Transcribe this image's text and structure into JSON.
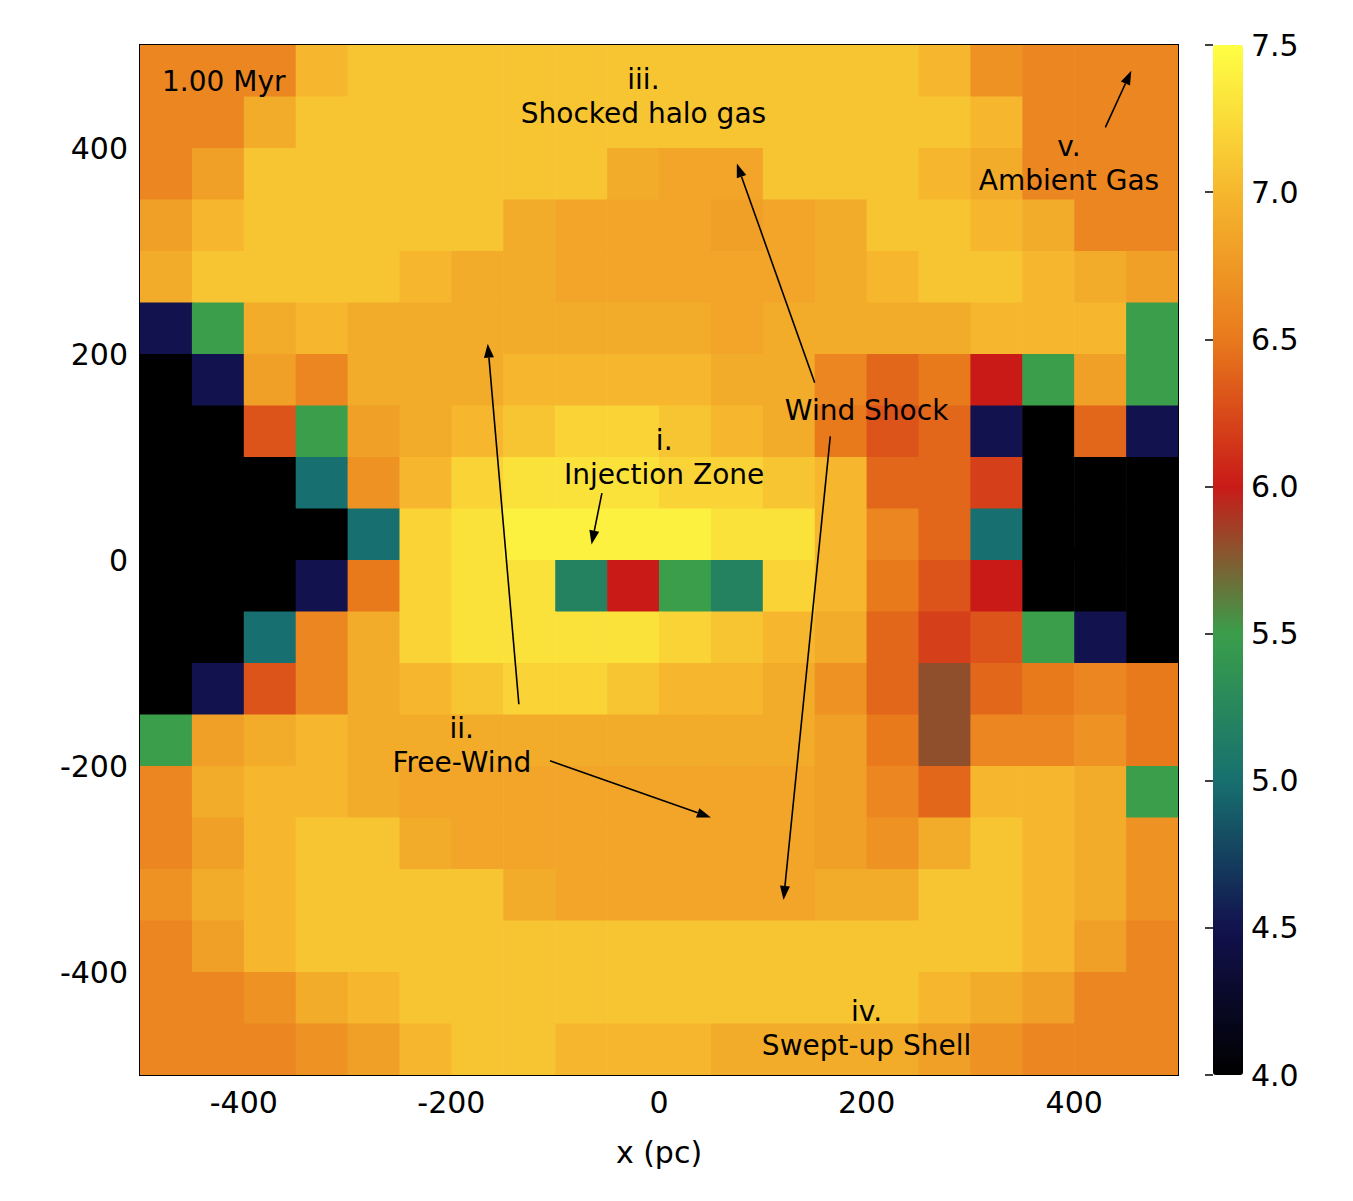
{
  "chart_data": {
    "type": "heatmap",
    "title": "1.00 Myr",
    "xlabel": "x (pc)",
    "x": [
      -475,
      -425,
      -375,
      -325,
      -275,
      -225,
      -175,
      -125,
      -75,
      -25,
      25,
      75,
      125,
      175,
      225,
      275,
      325,
      375,
      425,
      475
    ],
    "y": [
      475,
      425,
      375,
      325,
      275,
      225,
      175,
      125,
      75,
      25,
      -25,
      -75,
      -125,
      -175,
      -225,
      -275,
      -325,
      -375,
      -425,
      -475
    ],
    "values": [
      [
        6.6,
        6.6,
        6.6,
        7.0,
        7.1,
        7.1,
        7.1,
        7.1,
        7.1,
        7.1,
        7.1,
        7.1,
        7.1,
        7.1,
        7.1,
        7.0,
        6.7,
        6.6,
        6.6,
        6.6
      ],
      [
        6.6,
        6.6,
        6.9,
        7.1,
        7.1,
        7.1,
        7.1,
        7.1,
        7.1,
        7.1,
        7.1,
        7.1,
        7.1,
        7.1,
        7.1,
        7.1,
        7.0,
        6.6,
        6.6,
        6.6
      ],
      [
        6.6,
        6.8,
        7.1,
        7.1,
        7.1,
        7.1,
        7.1,
        7.1,
        7.1,
        6.9,
        6.85,
        6.85,
        7.1,
        7.1,
        7.1,
        7.0,
        6.9,
        6.6,
        6.6,
        6.6
      ],
      [
        6.8,
        7.0,
        7.1,
        7.1,
        7.1,
        7.1,
        7.1,
        6.9,
        6.85,
        6.85,
        6.85,
        6.8,
        6.85,
        6.9,
        7.1,
        7.1,
        7.0,
        6.9,
        6.6,
        6.6
      ],
      [
        6.9,
        7.1,
        7.1,
        7.1,
        7.1,
        7.0,
        6.9,
        6.9,
        6.85,
        6.85,
        6.85,
        6.85,
        6.85,
        6.9,
        7.0,
        7.1,
        7.1,
        7.0,
        6.9,
        6.8
      ],
      [
        4.5,
        5.5,
        6.9,
        7.0,
        6.9,
        6.9,
        6.9,
        6.9,
        6.9,
        6.9,
        6.9,
        6.85,
        6.9,
        6.9,
        6.9,
        6.9,
        7.0,
        7.0,
        7.0,
        5.5
      ],
      [
        4.0,
        4.5,
        6.8,
        6.6,
        6.9,
        6.9,
        6.9,
        7.0,
        7.0,
        7.0,
        7.0,
        6.9,
        6.9,
        6.6,
        6.4,
        6.5,
        6.0,
        5.5,
        6.8,
        5.5
      ],
      [
        4.0,
        4.0,
        6.3,
        5.5,
        6.8,
        6.9,
        7.0,
        7.1,
        7.2,
        7.2,
        7.1,
        7.0,
        6.9,
        6.5,
        6.3,
        6.4,
        4.5,
        4.0,
        6.4,
        4.5
      ],
      [
        4.0,
        4.0,
        4.0,
        5.0,
        6.7,
        7.0,
        7.2,
        7.3,
        7.3,
        7.3,
        7.2,
        7.2,
        7.1,
        7.0,
        6.4,
        6.4,
        6.2,
        4.0,
        4.0,
        4.0
      ],
      [
        4.0,
        4.0,
        4.0,
        4.0,
        5.0,
        7.2,
        7.3,
        7.4,
        7.4,
        7.4,
        7.4,
        7.3,
        7.3,
        7.0,
        6.6,
        6.4,
        5.0,
        4.0,
        4.0,
        4.0
      ],
      [
        4.0,
        4.0,
        4.0,
        4.5,
        6.5,
        7.2,
        7.3,
        7.3,
        5.2,
        6.0,
        5.5,
        5.2,
        7.2,
        7.0,
        6.5,
        6.3,
        6.0,
        4.0,
        4.0,
        4.0
      ],
      [
        4.0,
        4.0,
        5.0,
        6.6,
        6.9,
        7.2,
        7.3,
        7.3,
        7.3,
        7.3,
        7.2,
        7.1,
        7.0,
        6.9,
        6.4,
        6.2,
        6.3,
        5.5,
        4.5,
        4.0
      ],
      [
        4.0,
        4.5,
        6.3,
        6.6,
        6.9,
        7.0,
        7.1,
        7.2,
        7.2,
        7.1,
        7.0,
        7.0,
        6.9,
        6.7,
        6.4,
        5.8,
        6.4,
        6.5,
        6.6,
        6.5
      ],
      [
        5.5,
        6.8,
        6.9,
        7.0,
        6.9,
        6.9,
        6.9,
        6.9,
        6.9,
        6.9,
        6.9,
        6.9,
        6.9,
        6.8,
        6.5,
        5.8,
        6.6,
        6.6,
        6.7,
        6.5
      ],
      [
        6.6,
        6.9,
        7.0,
        7.0,
        6.9,
        6.85,
        6.85,
        6.85,
        6.85,
        6.85,
        6.85,
        6.85,
        6.85,
        6.8,
        6.6,
        6.4,
        7.0,
        7.0,
        6.9,
        5.5
      ],
      [
        6.6,
        6.8,
        7.0,
        7.1,
        7.1,
        6.9,
        6.85,
        6.85,
        6.85,
        6.85,
        6.85,
        6.85,
        6.85,
        6.8,
        6.7,
        6.9,
        7.1,
        7.0,
        6.9,
        6.7
      ],
      [
        6.7,
        6.9,
        7.0,
        7.1,
        7.1,
        7.1,
        7.1,
        6.9,
        6.85,
        6.85,
        6.85,
        6.85,
        6.85,
        6.9,
        6.9,
        7.1,
        7.1,
        7.0,
        6.9,
        6.7
      ],
      [
        6.6,
        6.8,
        7.0,
        7.1,
        7.1,
        7.1,
        7.1,
        7.1,
        7.1,
        7.1,
        7.1,
        7.1,
        7.1,
        7.1,
        7.1,
        7.1,
        7.1,
        7.0,
        6.8,
        6.6
      ],
      [
        6.6,
        6.6,
        6.7,
        6.9,
        7.0,
        7.1,
        7.1,
        7.1,
        7.1,
        7.1,
        7.1,
        7.1,
        7.1,
        7.1,
        7.1,
        7.0,
        6.9,
        6.8,
        6.6,
        6.6
      ],
      [
        6.6,
        6.6,
        6.6,
        6.7,
        6.8,
        7.0,
        7.1,
        7.1,
        7.0,
        7.0,
        7.0,
        6.9,
        6.9,
        6.9,
        6.9,
        6.8,
        6.7,
        6.6,
        6.6,
        6.6
      ]
    ],
    "xlim": [
      -500,
      500
    ],
    "ylim": [
      -500,
      500
    ],
    "xticks": [
      -400,
      -200,
      0,
      200,
      400
    ],
    "yticks": [
      -400,
      -200,
      0,
      200,
      400
    ],
    "color_range": [
      4,
      7.5
    ],
    "color_ticks": [
      {
        "value": 4,
        "label": "4.0"
      },
      {
        "value": 4.5,
        "label": "4.5"
      },
      {
        "value": 5,
        "label": "5.0"
      },
      {
        "value": 5.5,
        "label": "5.5"
      },
      {
        "value": 6,
        "label": "6.0"
      },
      {
        "value": 6.5,
        "label": "6.5"
      },
      {
        "value": 7,
        "label": "7.0"
      },
      {
        "value": 7.5,
        "label": "7.5"
      }
    ],
    "annotations": [
      "i.\nInjection Zone",
      "ii.\nFree-Wind",
      "iii.\nShocked halo gas",
      "Wind Shock",
      "iv.\nSwept-up Shell",
      "v.\nAmbient Gas"
    ]
  }
}
